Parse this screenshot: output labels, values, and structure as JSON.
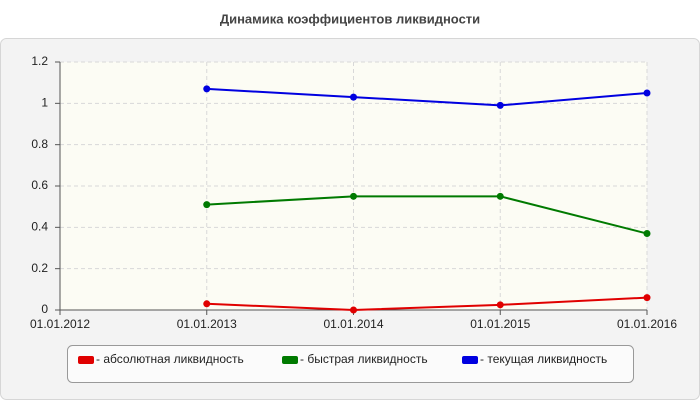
{
  "chart_data": {
    "type": "line",
    "title": "Динамика коэффициентов ликвидности",
    "categories": [
      "01.01.2012",
      "01.01.2013",
      "01.01.2014",
      "01.01.2015",
      "01.01.2016"
    ],
    "series": [
      {
        "name": "- абсолютная ликвидность",
        "color": "#e00000",
        "values": [
          null,
          0.03,
          0.0,
          0.025,
          0.06
        ]
      },
      {
        "name": "- быстрая ликвидность",
        "color": "#007a00",
        "values": [
          null,
          0.51,
          0.55,
          0.55,
          0.37
        ]
      },
      {
        "name": "- текущая ликвидность",
        "color": "#0000e0",
        "values": [
          null,
          1.07,
          1.03,
          0.99,
          1.05
        ]
      }
    ],
    "ylim": [
      0,
      1.2
    ],
    "yticks": [
      0,
      0.2,
      0.4,
      0.6,
      0.8,
      1,
      1.2
    ],
    "grid": true
  }
}
